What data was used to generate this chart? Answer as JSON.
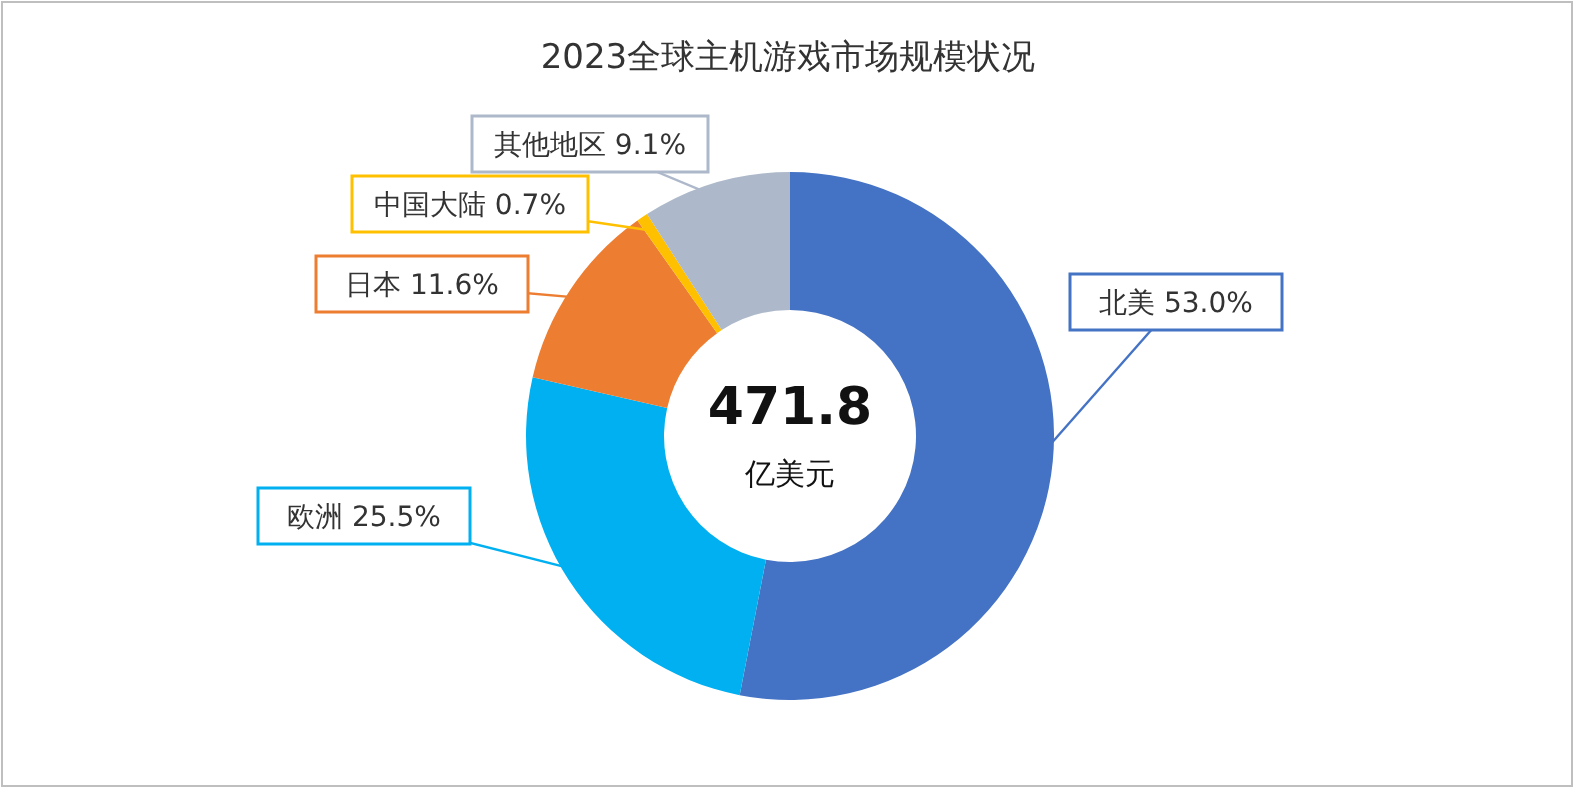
{
  "chart_data": {
    "type": "donut",
    "title": "2023全球主机游戏市场规模状况",
    "categories": [
      "北美",
      "欧洲",
      "日本",
      "中国大陆",
      "其他地区"
    ],
    "values": [
      53.0,
      25.5,
      11.6,
      0.7,
      9.1
    ],
    "value_labels": [
      "53.0%",
      "25.5%",
      "11.6%",
      "0.7%",
      "9.1%"
    ],
    "colors": [
      "#4472c4",
      "#00b0f0",
      "#ed7d31",
      "#ffc000",
      "#adb9ca"
    ],
    "annotations": [
      "471.8",
      "亿美元"
    ],
    "legend": false
  }
}
